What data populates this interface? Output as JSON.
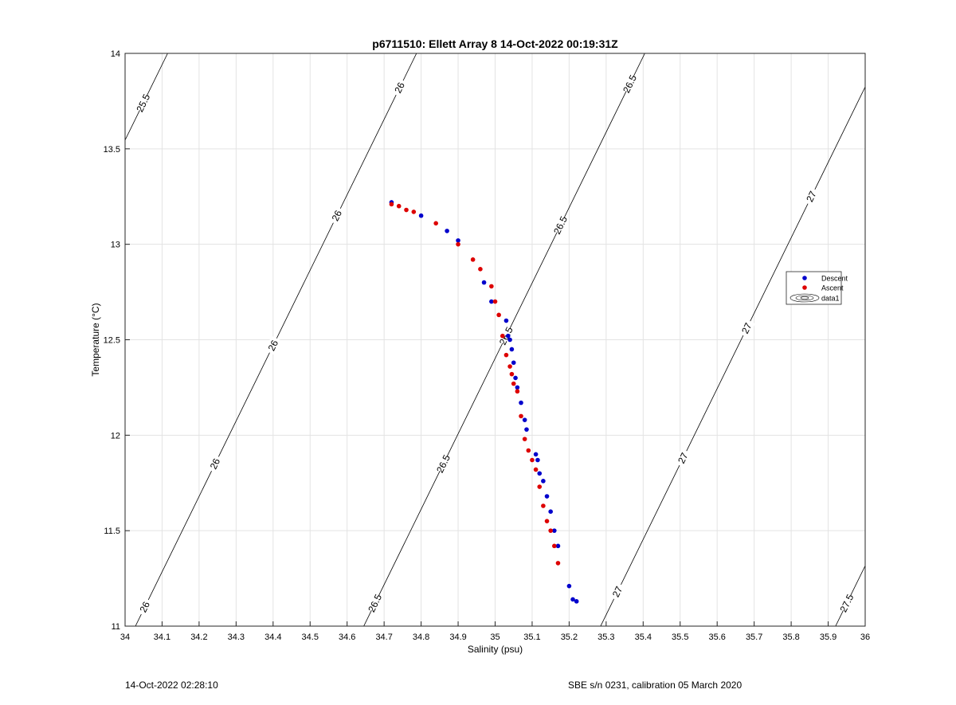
{
  "chart_data": {
    "type": "scatter",
    "title": "p6711510: Ellett Array 8 14-Oct-2022 00:19:31Z",
    "xlabel": "Salinity (psu)",
    "ylabel": "Temperature (°C)",
    "xlim": [
      34,
      36
    ],
    "ylim": [
      11,
      14
    ],
    "xticks": [
      "34",
      "34.1",
      "34.2",
      "34.3",
      "34.4",
      "34.5",
      "34.6",
      "34.7",
      "34.8",
      "34.9",
      "35",
      "35.1",
      "35.2",
      "35.3",
      "35.4",
      "35.5",
      "35.6",
      "35.7",
      "35.8",
      "35.9",
      "36"
    ],
    "yticks": [
      "11",
      "11.5",
      "12",
      "12.5",
      "13",
      "13.5",
      "14"
    ],
    "grid": true,
    "legend_position": "right",
    "legend": [
      "Descent",
      "Ascent",
      "data1"
    ],
    "colors": {
      "descent": "#0000cc",
      "ascent": "#dd0000",
      "contour": "#000000",
      "grid": "#e3e3e3"
    },
    "series": [
      {
        "name": "Descent",
        "x": [
          34.72,
          34.8,
          34.87,
          34.9,
          34.97,
          34.99,
          35.03,
          35.035,
          35.04,
          35.045,
          35.05,
          35.055,
          35.06,
          35.07,
          35.08,
          35.085,
          35.11,
          35.115,
          35.12,
          35.13,
          35.14,
          35.15,
          35.16,
          35.17,
          35.2,
          35.21,
          35.22
        ],
        "y": [
          13.22,
          13.15,
          13.07,
          13.02,
          12.8,
          12.7,
          12.6,
          12.52,
          12.5,
          12.45,
          12.38,
          12.3,
          12.25,
          12.17,
          12.08,
          12.03,
          11.9,
          11.87,
          11.8,
          11.76,
          11.68,
          11.6,
          11.5,
          11.42,
          11.21,
          11.14,
          11.13
        ]
      },
      {
        "name": "Ascent",
        "x": [
          34.72,
          34.74,
          34.76,
          34.78,
          34.84,
          34.9,
          34.94,
          34.96,
          34.99,
          35.0,
          35.01,
          35.02,
          35.03,
          35.04,
          35.045,
          35.05,
          35.06,
          35.07,
          35.08,
          35.09,
          35.1,
          35.11,
          35.12,
          35.13,
          35.14,
          35.15,
          35.16,
          35.17
        ],
        "y": [
          13.21,
          13.2,
          13.18,
          13.17,
          13.11,
          13.0,
          12.92,
          12.87,
          12.78,
          12.7,
          12.63,
          12.52,
          12.42,
          12.36,
          12.32,
          12.27,
          12.23,
          12.1,
          11.98,
          11.92,
          11.87,
          11.82,
          11.73,
          11.63,
          11.55,
          11.5,
          11.42,
          11.33
        ]
      }
    ],
    "contour_levels": [
      "25.5",
      "26",
      "26.5",
      "27",
      "27.5"
    ]
  },
  "footer": {
    "left": "14-Oct-2022 02:28:10",
    "right": "SBE s/n 0231, calibration 05 March 2020"
  }
}
